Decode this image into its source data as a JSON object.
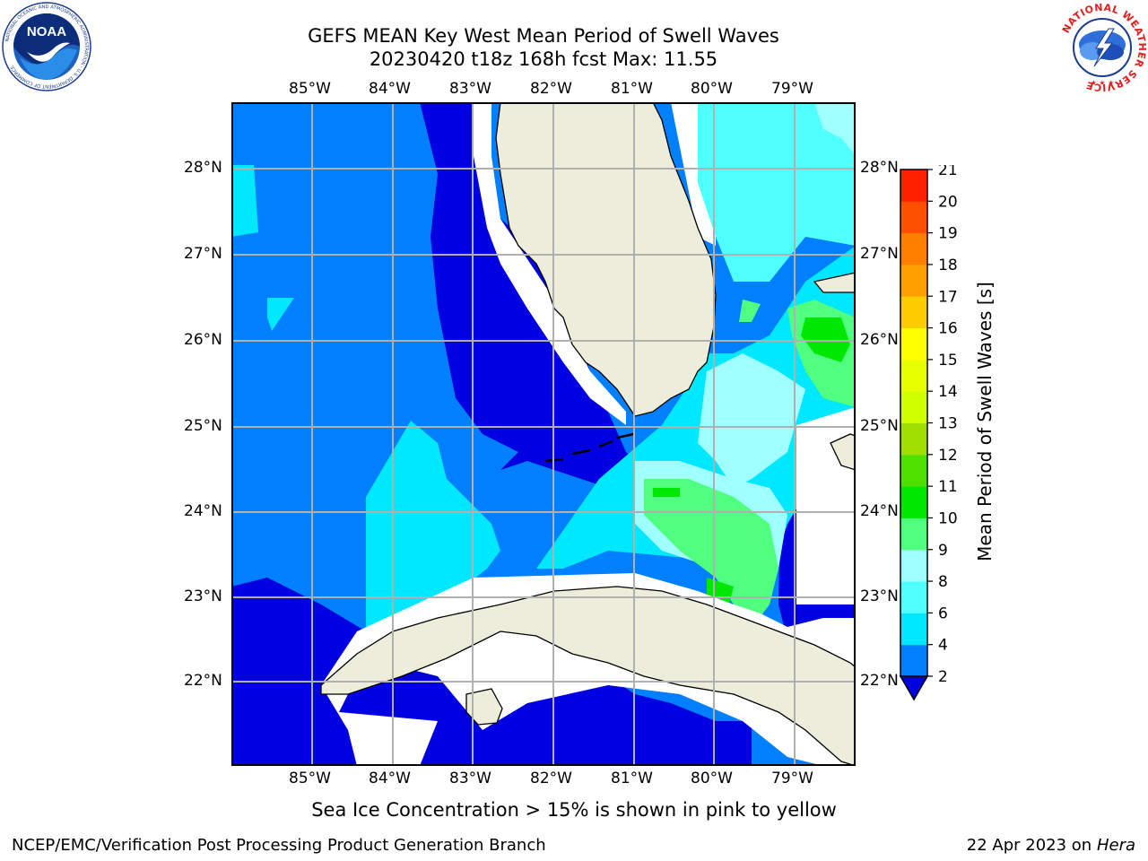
{
  "title": {
    "line1": "GEFS MEAN Key West Mean Period of Swell Waves",
    "line2": "20230420 t18z 168h fcst   Max: 11.55"
  },
  "map": {
    "lon_labels": [
      "85°W",
      "84°W",
      "83°W",
      "82°W",
      "81°W",
      "80°W",
      "79°W"
    ],
    "lat_labels": [
      "28°N",
      "27°N",
      "26°N",
      "25°N",
      "24°N",
      "23°N",
      "22°N"
    ]
  },
  "colorbar": {
    "label": "Mean Period of Swell Waves [s]",
    "ticks": [
      "2",
      "4",
      "6",
      "8",
      "9",
      "10",
      "11",
      "12",
      "13",
      "14",
      "15",
      "16",
      "17",
      "18",
      "19",
      "20",
      "21"
    ],
    "colors": [
      "#0000e0",
      "#0080ff",
      "#00e8ff",
      "#50ffff",
      "#a0ffff",
      "#50ff80",
      "#00e800",
      "#50e000",
      "#a0e000",
      "#d0ff00",
      "#e8ff00",
      "#ffff00",
      "#ffcc00",
      "#ffa000",
      "#ff8000",
      "#ff5000",
      "#ff2000",
      "#ff0000"
    ]
  },
  "note": "Sea Ice Concentration > 15% is shown in pink to yellow",
  "footer": {
    "left": "NCEP/EMC/Verification Post Processing Product Generation Branch",
    "date": "22 Apr 2023 on ",
    "host": "Hera"
  },
  "logos": {
    "noaa": {
      "text": "NOAA",
      "ring_text": "NATIONAL OCEANIC AND ATMOSPHERIC ADMINISTRATION · U.S. DEPARTMENT OF COMMERCE"
    },
    "nws": {
      "ring_text": "NATIONAL WEATHER SERVICE"
    }
  }
}
